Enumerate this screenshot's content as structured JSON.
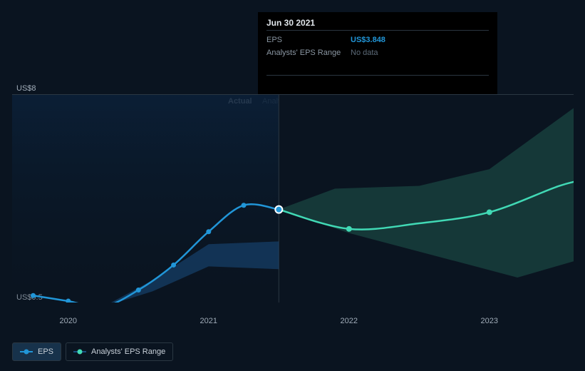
{
  "tooltip": {
    "date": "Jun 30 2021",
    "rows": {
      "eps": {
        "label": "EPS",
        "value": "US$3.848"
      },
      "range": {
        "label": "Analysts' EPS Range",
        "value": "No data"
      }
    }
  },
  "chart": {
    "type": "line",
    "background_color": "#0a1420",
    "ylabel_top": "US$8",
    "ylabel_bottom": "US$0.5",
    "ylim": [
      0.5,
      8
    ],
    "xlim": [
      2019.6,
      2023.6
    ],
    "x_ticks": [
      {
        "pos": 2020,
        "label": "2020"
      },
      {
        "pos": 2021,
        "label": "2021"
      },
      {
        "pos": 2022,
        "label": "2022"
      },
      {
        "pos": 2023,
        "label": "2023"
      }
    ],
    "divider_x": 2021.5,
    "label_actual": "Actual",
    "label_forecasts": "Analysts Forecasts",
    "series": {
      "eps_actual": {
        "color": "#2196d8",
        "marker_fill": "#2196d8",
        "line_width": 2.5,
        "points": [
          {
            "x": 2019.75,
            "y": 0.75
          },
          {
            "x": 2020.0,
            "y": 0.55
          },
          {
            "x": 2020.25,
            "y": 0.35
          },
          {
            "x": 2020.5,
            "y": 0.95
          },
          {
            "x": 2020.75,
            "y": 1.85
          },
          {
            "x": 2021.0,
            "y": 3.05
          },
          {
            "x": 2021.25,
            "y": 4.0
          },
          {
            "x": 2021.5,
            "y": 3.848
          }
        ],
        "highlight_index": 7
      },
      "eps_forecast": {
        "color": "#41d9b5",
        "marker_fill": "#41d9b5",
        "line_width": 2.5,
        "points": [
          {
            "x": 2021.5,
            "y": 3.848
          },
          {
            "x": 2022.0,
            "y": 3.15
          },
          {
            "x": 2022.5,
            "y": 3.35
          },
          {
            "x": 2023.0,
            "y": 3.75
          },
          {
            "x": 2023.5,
            "y": 4.7
          },
          {
            "x": 2023.75,
            "y": 5.0
          }
        ]
      },
      "eps_range_actual": {
        "fill": "#1a4d80",
        "opacity": 0.55,
        "upper": [
          {
            "x": 2020.25,
            "y": 0.35
          },
          {
            "x": 2020.6,
            "y": 1.3
          },
          {
            "x": 2021.0,
            "y": 2.6
          },
          {
            "x": 2021.5,
            "y": 2.7
          }
        ],
        "lower": [
          {
            "x": 2021.5,
            "y": 1.7
          },
          {
            "x": 2021.0,
            "y": 1.8
          },
          {
            "x": 2020.6,
            "y": 0.9
          },
          {
            "x": 2020.25,
            "y": 0.35
          }
        ]
      },
      "eps_range_forecast": {
        "fill": "#2a7a68",
        "opacity": 0.35,
        "upper": [
          {
            "x": 2021.5,
            "y": 3.848
          },
          {
            "x": 2021.9,
            "y": 4.6
          },
          {
            "x": 2022.5,
            "y": 4.7
          },
          {
            "x": 2023.0,
            "y": 5.3
          },
          {
            "x": 2023.6,
            "y": 7.5
          },
          {
            "x": 2023.75,
            "y": 7.9
          }
        ],
        "lower": [
          {
            "x": 2023.75,
            "y": 2.2
          },
          {
            "x": 2023.2,
            "y": 1.4
          },
          {
            "x": 2022.6,
            "y": 2.2
          },
          {
            "x": 2022.0,
            "y": 3.0
          },
          {
            "x": 2021.5,
            "y": 3.848
          }
        ]
      }
    },
    "colors": {
      "actual_bg_gradient_top": "#0b2038",
      "actual_bg_gradient_bot": "#0a1420",
      "forecast_bg": "#0a1420",
      "grid_top": "#2a3742",
      "highlight_ring": "#ffffff"
    }
  },
  "legend": {
    "eps": "EPS",
    "range": "Analysts' EPS Range",
    "eps_color": "#2196d8",
    "range_line_color": "#1a4d80",
    "range_dot_color": "#41d9b5"
  }
}
